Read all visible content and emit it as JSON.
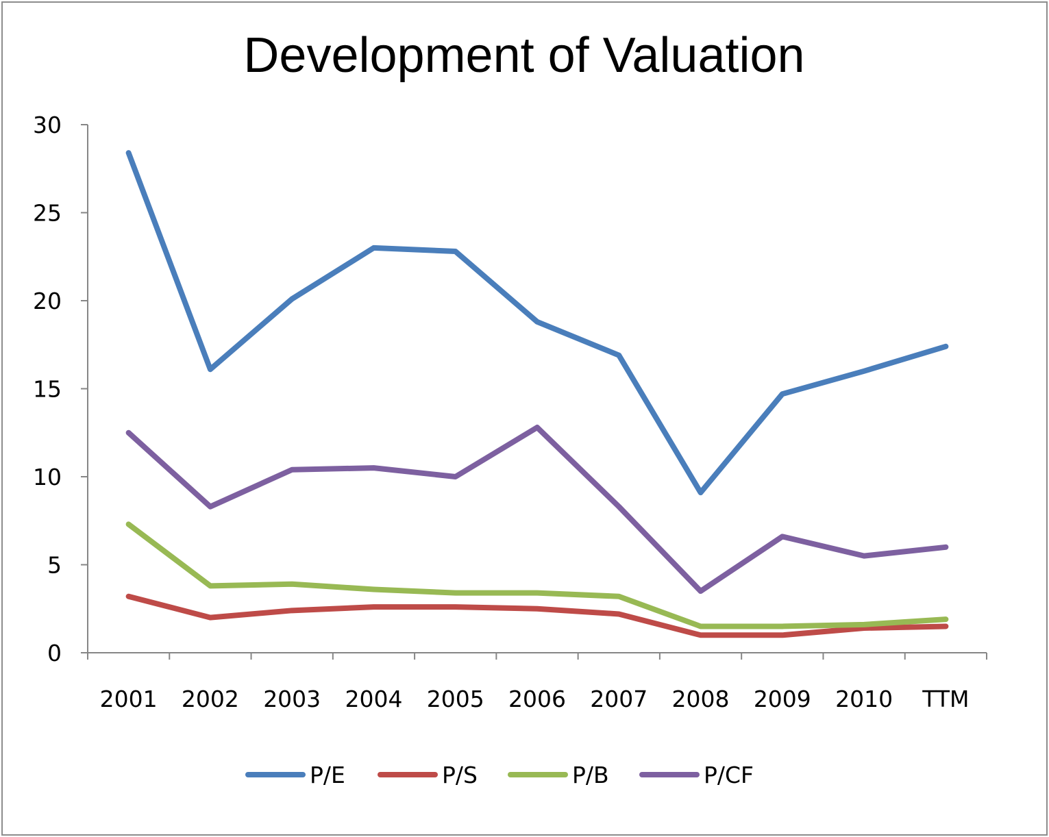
{
  "chart_data": {
    "type": "line",
    "title": "Development of Valuation",
    "xlabel": "",
    "ylabel": "",
    "categories": [
      "2001",
      "2002",
      "2003",
      "2004",
      "2005",
      "2006",
      "2007",
      "2008",
      "2009",
      "2010",
      "TTM"
    ],
    "ylim": [
      0,
      30
    ],
    "yticks": [
      0,
      5,
      10,
      15,
      20,
      25,
      30
    ],
    "grid": false,
    "legend": "bottom",
    "series": [
      {
        "name": "P/E",
        "color": "#4a7ebb",
        "values": [
          28.4,
          16.1,
          20.1,
          23.0,
          22.8,
          18.8,
          16.9,
          9.1,
          14.7,
          16.0,
          17.4
        ]
      },
      {
        "name": "P/S",
        "color": "#be4b48",
        "values": [
          3.2,
          2.0,
          2.4,
          2.6,
          2.6,
          2.5,
          2.2,
          1.0,
          1.0,
          1.4,
          1.5
        ]
      },
      {
        "name": "P/B",
        "color": "#98b954",
        "values": [
          7.3,
          3.8,
          3.9,
          3.6,
          3.4,
          3.4,
          3.2,
          1.5,
          1.5,
          1.6,
          1.9
        ]
      },
      {
        "name": "P/CF",
        "color": "#7d60a0",
        "values": [
          12.5,
          8.3,
          10.4,
          10.5,
          10.0,
          12.8,
          8.3,
          3.5,
          6.6,
          5.5,
          6.0
        ]
      }
    ]
  }
}
